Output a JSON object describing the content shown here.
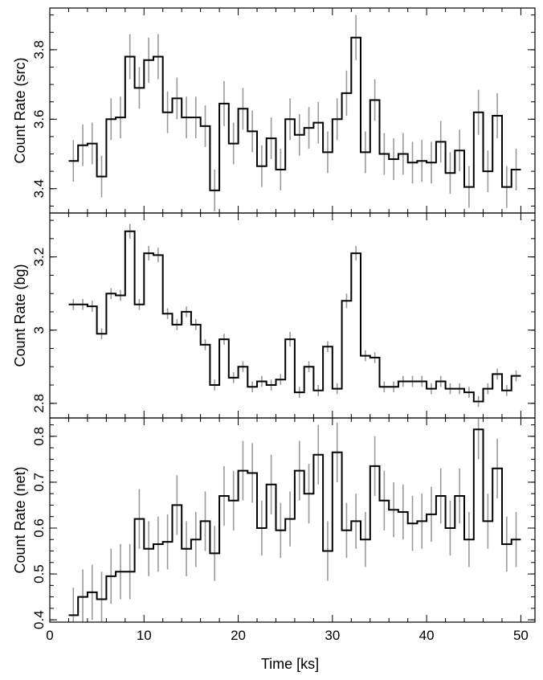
{
  "chart_data": [
    {
      "type": "line",
      "style": "step-histogram-with-error-bars",
      "ylabel": "Count Rate (src)",
      "xlim": [
        0,
        51.5
      ],
      "ylim": [
        3.33,
        3.92
      ],
      "yticks": [
        3.4,
        3.6,
        3.8
      ],
      "ytick_labels": [
        "3.4",
        "3.6",
        "3.8"
      ],
      "x": [
        2.5,
        3.5,
        4.5,
        5.5,
        6.5,
        7.5,
        8.5,
        9.5,
        10.5,
        11.5,
        12.5,
        13.5,
        14.5,
        15.5,
        16.5,
        17.5,
        18.5,
        19.5,
        20.5,
        21.5,
        22.5,
        23.5,
        24.5,
        25.5,
        26.5,
        27.5,
        28.5,
        29.5,
        30.5,
        31.5,
        32.5,
        33.5,
        34.5,
        35.5,
        36.5,
        37.5,
        38.5,
        39.5,
        40.5,
        41.5,
        42.5,
        43.5,
        44.5,
        45.5,
        46.5,
        47.5,
        48.5,
        49.5
      ],
      "values": [
        3.48,
        3.525,
        3.53,
        3.435,
        3.6,
        3.605,
        3.78,
        3.69,
        3.77,
        3.78,
        3.62,
        3.66,
        3.605,
        3.605,
        3.58,
        3.395,
        3.645,
        3.53,
        3.63,
        3.565,
        3.465,
        3.545,
        3.455,
        3.6,
        3.555,
        3.575,
        3.59,
        3.505,
        3.6,
        3.675,
        3.835,
        3.505,
        3.655,
        3.5,
        3.485,
        3.5,
        3.475,
        3.48,
        3.475,
        3.535,
        3.445,
        3.51,
        3.405,
        3.62,
        3.45,
        3.61,
        3.405,
        3.455
      ],
      "errors": [
        0.06,
        0.06,
        0.06,
        0.06,
        0.06,
        0.06,
        0.065,
        0.06,
        0.065,
        0.065,
        0.06,
        0.06,
        0.06,
        0.06,
        0.06,
        0.06,
        0.065,
        0.06,
        0.06,
        0.06,
        0.06,
        0.06,
        0.06,
        0.06,
        0.06,
        0.06,
        0.06,
        0.06,
        0.06,
        0.065,
        0.065,
        0.06,
        0.06,
        0.06,
        0.06,
        0.06,
        0.06,
        0.06,
        0.06,
        0.06,
        0.06,
        0.06,
        0.06,
        0.065,
        0.06,
        0.065,
        0.06,
        0.06
      ]
    },
    {
      "type": "line",
      "style": "step-histogram-with-error-bars",
      "ylabel": "Count Rate (bg)",
      "xlim": [
        0,
        51.5
      ],
      "ylim": [
        2.76,
        3.32
      ],
      "yticks": [
        2.8,
        3.0,
        3.2
      ],
      "ytick_labels": [
        "2.8",
        "3",
        "3.2"
      ],
      "x": [
        2.5,
        3.5,
        4.5,
        5.5,
        6.5,
        7.5,
        8.5,
        9.5,
        10.5,
        11.5,
        12.5,
        13.5,
        14.5,
        15.5,
        16.5,
        17.5,
        18.5,
        19.5,
        20.5,
        21.5,
        22.5,
        23.5,
        24.5,
        25.5,
        26.5,
        27.5,
        28.5,
        29.5,
        30.5,
        31.5,
        32.5,
        33.5,
        34.5,
        35.5,
        36.5,
        37.5,
        38.5,
        39.5,
        40.5,
        41.5,
        42.5,
        43.5,
        44.5,
        45.5,
        46.5,
        47.5,
        48.5,
        49.5
      ],
      "values": [
        3.07,
        3.07,
        3.065,
        2.99,
        3.1,
        3.095,
        3.27,
        3.07,
        3.21,
        3.205,
        3.045,
        3.015,
        3.05,
        3.015,
        2.96,
        2.85,
        2.975,
        2.87,
        2.9,
        2.845,
        2.86,
        2.85,
        2.865,
        2.975,
        2.83,
        2.9,
        2.835,
        2.955,
        2.84,
        3.08,
        3.21,
        2.93,
        2.925,
        2.845,
        2.845,
        2.86,
        2.86,
        2.86,
        2.84,
        2.86,
        2.84,
        2.84,
        2.83,
        2.805,
        2.84,
        2.88,
        2.835,
        2.875
      ],
      "errors": [
        0.015,
        0.015,
        0.015,
        0.015,
        0.015,
        0.015,
        0.02,
        0.015,
        0.02,
        0.02,
        0.015,
        0.015,
        0.015,
        0.015,
        0.015,
        0.015,
        0.015,
        0.015,
        0.015,
        0.015,
        0.015,
        0.015,
        0.015,
        0.02,
        0.015,
        0.015,
        0.015,
        0.015,
        0.015,
        0.02,
        0.02,
        0.015,
        0.015,
        0.015,
        0.015,
        0.015,
        0.015,
        0.015,
        0.015,
        0.015,
        0.015,
        0.015,
        0.015,
        0.015,
        0.015,
        0.015,
        0.015,
        0.015
      ]
    },
    {
      "type": "line",
      "style": "step-histogram-with-error-bars",
      "ylabel": "Count Rate (net)",
      "xlabel": "Time [ks]",
      "xlim": [
        0,
        51.5
      ],
      "ylim": [
        0.395,
        0.84
      ],
      "xticks": [
        0,
        10,
        20,
        30,
        40,
        50
      ],
      "xtick_labels": [
        "0",
        "10",
        "20",
        "30",
        "40",
        "50"
      ],
      "yticks": [
        0.4,
        0.5,
        0.6,
        0.7,
        0.8
      ],
      "ytick_labels": [
        "0.4",
        "0.5",
        "0.6",
        "0.7",
        "0.8"
      ],
      "x": [
        2.5,
        3.5,
        4.5,
        5.5,
        6.5,
        7.5,
        8.5,
        9.5,
        10.5,
        11.5,
        12.5,
        13.5,
        14.5,
        15.5,
        16.5,
        17.5,
        18.5,
        19.5,
        20.5,
        21.5,
        22.5,
        23.5,
        24.5,
        25.5,
        26.5,
        27.5,
        28.5,
        29.5,
        30.5,
        31.5,
        32.5,
        33.5,
        34.5,
        35.5,
        36.5,
        37.5,
        38.5,
        39.5,
        40.5,
        41.5,
        42.5,
        43.5,
        44.5,
        45.5,
        46.5,
        47.5,
        48.5,
        49.5
      ],
      "values": [
        0.41,
        0.45,
        0.46,
        0.445,
        0.495,
        0.505,
        0.505,
        0.62,
        0.555,
        0.565,
        0.57,
        0.65,
        0.555,
        0.575,
        0.615,
        0.545,
        0.67,
        0.66,
        0.725,
        0.72,
        0.6,
        0.695,
        0.595,
        0.62,
        0.725,
        0.675,
        0.76,
        0.55,
        0.765,
        0.595,
        0.615,
        0.575,
        0.735,
        0.66,
        0.64,
        0.635,
        0.61,
        0.615,
        0.63,
        0.67,
        0.6,
        0.67,
        0.575,
        0.815,
        0.615,
        0.73,
        0.565,
        0.575
      ],
      "errors": [
        0.06,
        0.06,
        0.06,
        0.06,
        0.06,
        0.06,
        0.06,
        0.065,
        0.06,
        0.06,
        0.06,
        0.065,
        0.06,
        0.06,
        0.065,
        0.06,
        0.065,
        0.065,
        0.065,
        0.065,
        0.06,
        0.065,
        0.06,
        0.06,
        0.065,
        0.065,
        0.065,
        0.065,
        0.065,
        0.06,
        0.06,
        0.06,
        0.065,
        0.065,
        0.06,
        0.06,
        0.06,
        0.06,
        0.06,
        0.06,
        0.06,
        0.06,
        0.06,
        0.065,
        0.06,
        0.065,
        0.06,
        0.06
      ]
    }
  ]
}
